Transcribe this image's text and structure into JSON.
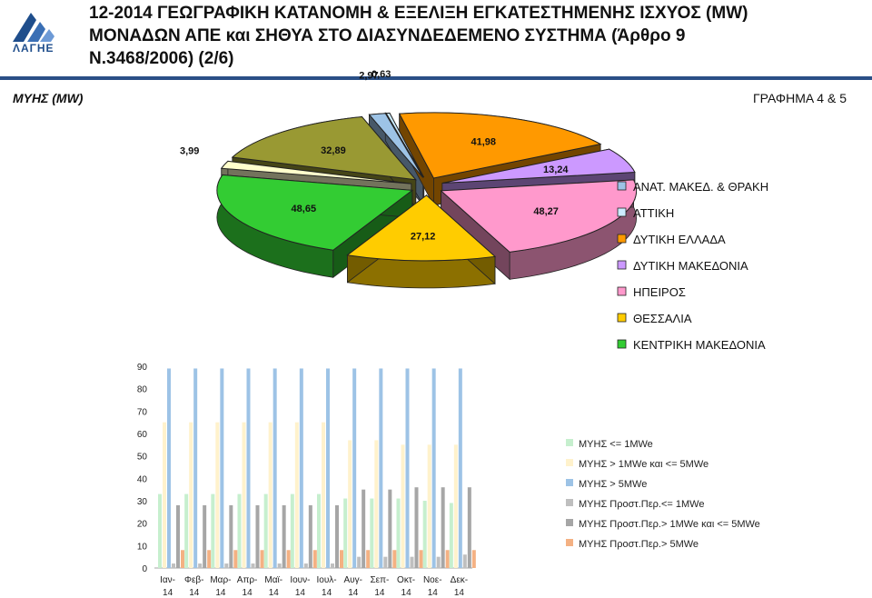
{
  "header": {
    "logo_text": "ΛΑΓΗΕ",
    "title_line1": "12-2014 ΓΕΩΓΡΑΦΙΚΗ ΚΑΤΑΝΟΜΗ & ΕΞΕΛΙΞΗ ΕΓΚΑΤΕΣΤΗΜΕΝΗΣ ΙΣΧΥΟΣ (MW)",
    "title_line2": "ΜΟΝΑΔΩΝ ΑΠΕ και ΣΗΘΥΑ ΣΤΟ ΔΙΑΣΥΝΔΕΔΕΜΕΝΟ ΣΥΣΤΗΜΑ (Άρθρο 9",
    "title_line3": "Ν.3468/2006) (2/6)"
  },
  "panel": {
    "title": "ΜΥΗΣ (MW)",
    "figure_label": "ΓΡΑΦΗΜΑ 4 & 5"
  },
  "colors": {
    "blue_band": "#2a4f86",
    "series_le1": "#c6efce",
    "series_1to5": "#fff2cc",
    "series_gt5": "#9dc3e6",
    "series_proc_le1": "#bfbfbf",
    "series_proc_1to5": "#a6a6a6",
    "series_proc_gt5": "#f4b183"
  },
  "chart_data": [
    {
      "type": "pie",
      "title": "",
      "slices": [
        {
          "label": "ΑΝΑΤ. ΜΑΚΕΔ. & ΘΡΑΚΗ",
          "value": 2.97,
          "value_label": "2,97",
          "color": "#9dc3e6"
        },
        {
          "label": "ΑΤΤΙΚΗ",
          "value": 0.63,
          "value_label": "0,63",
          "color": "#ccecff"
        },
        {
          "label": "ΔΥΤΙΚΗ ΕΛΛΑΔΑ",
          "value": 41.98,
          "value_label": "41,98",
          "color": "#ff9900"
        },
        {
          "label": "ΔΥΤΙΚΗ ΜΑΚΕΔΟΝΙΑ",
          "value": 13.24,
          "value_label": "13,24",
          "color": "#cc99ff"
        },
        {
          "label": "ΗΠΕΙΡΟΣ",
          "value": 48.27,
          "value_label": "48,27",
          "color": "#ff99cc"
        },
        {
          "label": "ΘΕΣΣΑΛΙΑ",
          "value": 27.12,
          "value_label": "27,12",
          "color": "#ffcc00"
        },
        {
          "label": "ΚΕΝΤΡΙΚΗ ΜΑΚΕΔΟΝΙΑ",
          "value": 48.65,
          "value_label": "48,65",
          "color": "#33cc33"
        },
        {
          "label": "",
          "value": 3.99,
          "value_label": "3,99",
          "color": "#ffffcc"
        },
        {
          "label": "",
          "value": 32.89,
          "value_label": "32,89",
          "color": "#999933"
        }
      ],
      "legend_visible": [
        "ΑΝΑΤ. ΜΑΚΕΔ. & ΘΡΑΚΗ",
        "ΑΤΤΙΚΗ",
        "ΔΥΤΙΚΗ ΕΛΛΑΔΑ",
        "ΔΥΤΙΚΗ ΜΑΚΕΔΟΝΙΑ",
        "ΗΠΕΙΡΟΣ",
        "ΘΕΣΣΑΛΙΑ",
        "ΚΕΝΤΡΙΚΗ ΜΑΚΕΔΟΝΙΑ"
      ],
      "legend_position": "right",
      "style": "3d exploded"
    },
    {
      "type": "bar",
      "title": "",
      "categories": [
        "Ιαν-14",
        "Φεβ-14",
        "Μαρ-14",
        "Απρ-14",
        "Μαϊ-14",
        "Ιουν-14",
        "Ιουλ-14",
        "Αυγ-14",
        "Σεπ-14",
        "Οκτ-14",
        "Νοε-14",
        "Δεκ-14"
      ],
      "ylim": [
        0,
        90
      ],
      "yticks": [
        0,
        10,
        20,
        30,
        40,
        50,
        60,
        70,
        80,
        90
      ],
      "legend_position": "right",
      "grid": false,
      "series": [
        {
          "name": "ΜΥΗΣ <= 1MWe",
          "color": "#c6efce",
          "values": [
            33,
            33,
            33,
            33,
            33,
            33,
            33,
            31,
            31,
            31,
            30,
            29
          ]
        },
        {
          "name": "ΜΥΗΣ > 1MWe και <= 5MWe",
          "color": "#fff2cc",
          "values": [
            65,
            65,
            65,
            65,
            65,
            65,
            65,
            57,
            57,
            55,
            55,
            55
          ]
        },
        {
          "name": "ΜΥΗΣ > 5MWe",
          "color": "#9dc3e6",
          "values": [
            89,
            89,
            89,
            89,
            89,
            89,
            89,
            89,
            89,
            89,
            89,
            89
          ]
        },
        {
          "name": "ΜΥΗΣ Προστ.Περ.<= 1MWe",
          "color": "#bfbfbf",
          "values": [
            2,
            2,
            2,
            2,
            2,
            2,
            2,
            5,
            5,
            5,
            5,
            6
          ]
        },
        {
          "name": "ΜΥΗΣ Προστ.Περ.> 1MWe και <= 5MWe",
          "color": "#a6a6a6",
          "values": [
            28,
            28,
            28,
            28,
            28,
            28,
            28,
            35,
            35,
            36,
            36,
            36
          ]
        },
        {
          "name": "ΜΥΗΣ Προστ.Περ.> 5MWe",
          "color": "#f4b183",
          "values": [
            8,
            8,
            8,
            8,
            8,
            8,
            8,
            8,
            8,
            8,
            8,
            8
          ]
        }
      ]
    }
  ]
}
